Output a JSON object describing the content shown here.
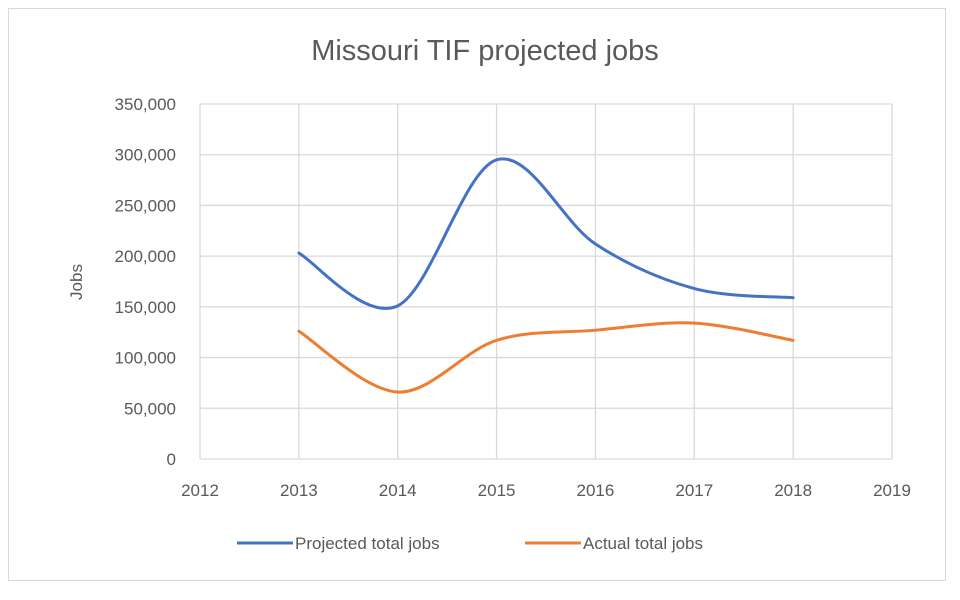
{
  "chart_data": {
    "type": "line",
    "title": "Missouri TIF projected jobs",
    "xlabel": "",
    "ylabel": "Jobs",
    "x": [
      2013,
      2014,
      2015,
      2016,
      2017,
      2018
    ],
    "xlim": [
      2012,
      2019
    ],
    "xticks": [
      "2012",
      "2013",
      "2014",
      "2015",
      "2016",
      "2017",
      "2018",
      "2019"
    ],
    "ylim": [
      0,
      350000
    ],
    "yticks": [
      "0",
      "50,000",
      "100,000",
      "150,000",
      "200,000",
      "250,000",
      "300,000",
      "350,000"
    ],
    "grid": true,
    "smoothed": true,
    "legend_position": "bottom",
    "series": [
      {
        "name": "Projected total jobs",
        "color": "#4472c4",
        "values": [
          203000,
          151000,
          295000,
          212000,
          168000,
          159000
        ]
      },
      {
        "name": "Actual total jobs",
        "color": "#ed7d31",
        "values": [
          126000,
          66000,
          117000,
          127000,
          134000,
          117000
        ]
      }
    ]
  }
}
